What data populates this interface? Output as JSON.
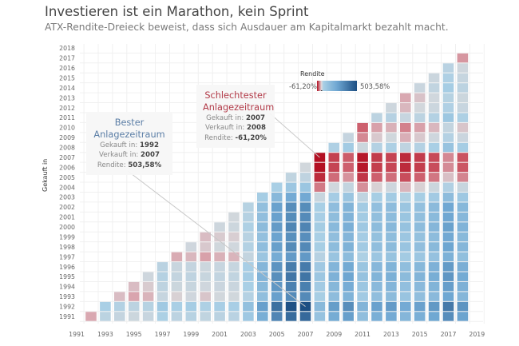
{
  "header": {
    "title": "Investieren ist ein Marathon, kein Sprint",
    "subtitle": "ATX-Rendite-Dreieck beweist, dass sich Ausdauer am Kapitalmarkt bezahlt macht."
  },
  "legend": {
    "title": "Rendite",
    "min_label": "-61,20%",
    "max_label": "503,58%"
  },
  "annotations": {
    "best": {
      "title_1": "Bester",
      "title_2": "Anlagezeitraum",
      "bought_label": "Gekauft in:",
      "bought": "1992",
      "sold_label": "Verkauft in:",
      "sold": "2007",
      "return_label": "Rendite:",
      "return": "503,58%"
    },
    "worst": {
      "title_1": "Schlechtester",
      "title_2": "Anlagezeitraum",
      "bought_label": "Gekauft in:",
      "bought": "2007",
      "sold_label": "Verkauft in:",
      "sold": "2008",
      "return_label": "Rendite:",
      "return": "-61,20%"
    }
  },
  "chart_data": {
    "type": "heatmap",
    "title": "Investieren ist ein Marathon, kein Sprint",
    "ylabel": "Gekauft in",
    "xlabel": "",
    "x_ticks": [
      1991,
      1993,
      1995,
      1997,
      1999,
      2001,
      2003,
      2005,
      2007,
      2009,
      2011,
      2013,
      2015,
      2017,
      2019
    ],
    "y_ticks": [
      1991,
      1992,
      1993,
      1994,
      1995,
      1996,
      1997,
      1998,
      1999,
      2000,
      2001,
      2002,
      2003,
      2004,
      2005,
      2006,
      2007,
      2008,
      2009,
      2010,
      2011,
      2012,
      2013,
      2014,
      2015,
      2016,
      2017,
      2018
    ],
    "value_unit": "%",
    "color_range": [
      -61.2,
      503.58
    ],
    "colors": {
      "negative": "#b30f22",
      "neutral": "#d6d6d9",
      "positive": "#1d4f83"
    },
    "grid": true,
    "legend_position": "top-right",
    "note": "rows: bought year; returns listed for sold years bought+1 .. 2018",
    "rows": [
      {
        "bought": 1991,
        "returns": [
          -15,
          28,
          17,
          8,
          14,
          47,
          27,
          33,
          22,
          30,
          31,
          76,
          176,
          317,
          407,
          413,
          99,
          184,
          230,
          115,
          173,
          189,
          145,
          172,
          198,
          289,
          212
        ]
      },
      {
        "bought": 1992,
        "returns": [
          51,
          38,
          27,
          34,
          73,
          50,
          57,
          44,
          53,
          54,
          107,
          225,
          391,
          497,
          503.58,
          134,
          234,
          288,
          153,
          221,
          241,
          189,
          221,
          250,
          358,
          267
        ]
      },
      {
        "bought": 1993,
        "returns": [
          -8,
          -16,
          -11,
          15,
          -1,
          4,
          -5,
          1,
          2,
          37,
          116,
          225,
          296,
          300,
          55,
          121,
          157,
          68,
          113,
          126,
          91,
          113,
          132,
          203,
          143
        ]
      },
      {
        "bought": 1994,
        "returns": [
          -8,
          -3,
          25,
          8,
          13,
          4,
          10,
          11,
          50,
          135,
          255,
          332,
          337,
          69,
          142,
          181,
          83,
          132,
          147,
          109,
          132,
          153,
          231,
          166
        ]
      },
      {
        "bought": 1995,
        "returns": [
          5,
          36,
          18,
          23,
          13,
          20,
          21,
          62,
          155,
          285,
          369,
          374,
          84,
          162,
          205,
          99,
          152,
          168,
          127,
          152,
          175,
          259,
          188
        ]
      },
      {
        "bought": 1996,
        "returns": [
          29,
          12,
          17,
          7,
          14,
          15,
          54,
          143,
          266,
          346,
          351,
          75,
          149,
          190,
          89,
          140,
          154,
          116,
          139,
          162,
          242,
          174
        ]
      },
      {
        "bought": 1997,
        "returns": [
          -14,
          -10,
          -17,
          -12,
          -11,
          19,
          88,
          183,
          245,
          248,
          35,
          93,
          124,
          46,
          85,
          97,
          67,
          85,
          102,
          164,
          112
        ]
      },
      {
        "bought": 1998,
        "returns": [
          4,
          -4,
          2,
          3,
          38,
          117,
          227,
          299,
          303,
          56,
          123,
          159,
          69,
          114,
          127,
          93,
          114,
          134,
          205,
          145
        ]
      },
      {
        "bought": 1999,
        "returns": [
          -8,
          -3,
          -2,
          32,
          108,
          213,
          282,
          286,
          50,
          113,
          148,
          62,
          105,
          118,
          85,
          105,
          124,
          192,
          135
        ]
      },
      {
        "bought": 2000,
        "returns": [
          6,
          7,
          44,
          127,
          242,
          316,
          321,
          63,
          133,
          171,
          76,
          124,
          137,
          101,
          123,
          144,
          219,
          156
        ]
      },
      {
        "bought": 2001,
        "returns": [
          1,
          36,
          113,
          222,
          292,
          296,
          54,
          119,
          155,
          66,
          111,
          123,
          89,
          110,
          130,
          200,
          141
        ]
      },
      {
        "bought": 2002,
        "returns": [
          34,
          111,
          219,
          288,
          292,
          52,
          117,
          153,
          65,
          109,
          121,
          88,
          108,
          128,
          197,
          139
        ]
      },
      {
        "bought": 2003,
        "returns": [
          57,
          137,
          189,
          192,
          13,
          62,
          88,
          22,
          55,
          65,
          40,
          55,
          69,
          121,
          78
        ]
      },
      {
        "bought": 2004,
        "returns": [
          51,
          84,
          86,
          -28,
          3,
          19,
          -22,
          -1,
          5,
          -11,
          -1,
          8,
          41,
          13
        ]
      },
      {
        "bought": 2005,
        "returns": [
          22,
          23,
          -52,
          -32,
          -21,
          -48,
          -35,
          -31,
          -41,
          -35,
          -29,
          -7,
          -25
        ]
      },
      {
        "bought": 2006,
        "returns": [
          1,
          -61,
          -44,
          -35,
          -58,
          -46,
          -43,
          -52,
          -46,
          -41,
          -23,
          -38
        ]
      },
      {
        "bought": 2007,
        "returns": [
          -61.2,
          -45,
          -36,
          -58,
          -47,
          -44,
          -52,
          -47,
          -42,
          -24,
          -39
        ]
      },
      {
        "bought": 2008,
        "returns": [
          43,
          66,
          8,
          37,
          46,
          23,
          37,
          50,
          95,
          57
        ]
      },
      {
        "bought": 2009,
        "returns": [
          16,
          -24,
          -4,
          2,
          -13,
          -4,
          5,
          37,
          10
        ]
      },
      {
        "bought": 2010,
        "returns": [
          -35,
          -17,
          -12,
          -26,
          -17,
          -10,
          18,
          -5
        ]
      },
      {
        "bought": 2011,
        "returns": [
          27,
          35,
          14,
          27,
          38,
          81,
          45
        ]
      },
      {
        "bought": 2012,
        "returns": [
          6,
          -10,
          0,
          9,
          42,
          14
        ]
      },
      {
        "bought": 2013,
        "returns": [
          -15,
          -6,
          3,
          34,
          8
        ]
      },
      {
        "bought": 2014,
        "returns": [
          11,
          21,
          58,
          27
        ]
      },
      {
        "bought": 2015,
        "returns": [
          9,
          43,
          15
        ]
      },
      {
        "bought": 2016,
        "returns": [
          31,
          5
        ]
      },
      {
        "bought": 2017,
        "returns": [
          -20
        ]
      }
    ]
  }
}
